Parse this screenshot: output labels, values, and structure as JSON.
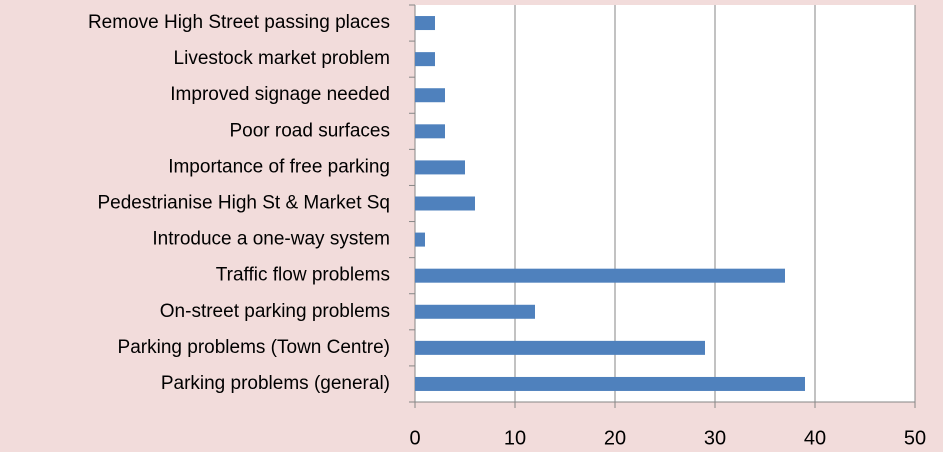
{
  "chart_data": {
    "type": "bar",
    "orientation": "horizontal",
    "categories": [
      "Remove High Street passing places",
      "Livestock market problem",
      "Improved signage needed",
      "Poor road surfaces",
      "Importance of free parking",
      "Pedestrianise High St & Market Sq",
      "Introduce a one-way system",
      "Traffic flow problems",
      "On-street parking problems",
      "Parking problems (Town Centre)",
      "Parking problems (general)"
    ],
    "values": [
      2,
      2,
      3,
      3,
      5,
      6,
      1,
      37,
      12,
      29,
      39
    ],
    "color": "#4f81bd",
    "xlim": [
      0,
      50
    ],
    "xticks": [
      0,
      10,
      20,
      30,
      40,
      50
    ],
    "grid": true
  }
}
